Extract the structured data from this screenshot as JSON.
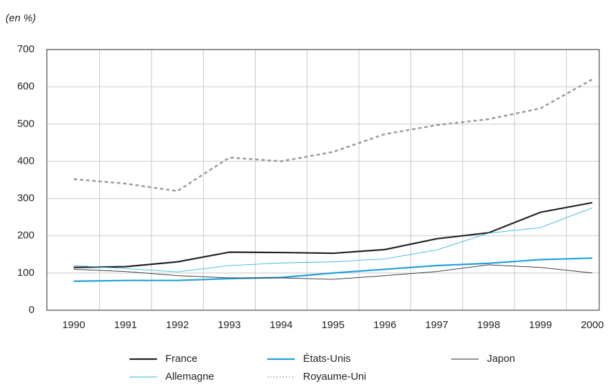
{
  "chart_data": {
    "type": "line",
    "subtitle": "(en %)",
    "categories": [
      "1990",
      "1991",
      "1992",
      "1993",
      "1994",
      "1995",
      "1996",
      "1997",
      "1998",
      "1999",
      "2000"
    ],
    "series": [
      {
        "name": "France",
        "color": "#222222",
        "width": 2.2,
        "dash": "none",
        "values": [
          115,
          117,
          130,
          156,
          155,
          153,
          163,
          192,
          208,
          263,
          289
        ]
      },
      {
        "name": "États-Unis",
        "color": "#1ea0dc",
        "width": 2.2,
        "dash": "none",
        "values": [
          78,
          80,
          80,
          85,
          88,
          100,
          110,
          120,
          126,
          136,
          140
        ]
      },
      {
        "name": "Japon",
        "color": "#222222",
        "width": 0.9,
        "dash": "none",
        "values": [
          110,
          104,
          93,
          87,
          87,
          83,
          93,
          104,
          122,
          115,
          100
        ]
      },
      {
        "name": "Allemagne",
        "color": "#33b5e5",
        "width": 0.9,
        "dash": "none",
        "values": [
          120,
          112,
          103,
          120,
          127,
          130,
          138,
          162,
          207,
          222,
          275
        ]
      },
      {
        "name": "Royaume-Uni",
        "color": "#999999",
        "width": 2.5,
        "dash": "5 4",
        "values": [
          352,
          340,
          320,
          410,
          400,
          425,
          473,
          497,
          513,
          542,
          620
        ]
      }
    ],
    "ylim": [
      0,
      700
    ],
    "yticks": [
      0,
      100,
      200,
      300,
      400,
      500,
      600,
      700
    ],
    "grid": true,
    "legend": "bottom"
  }
}
